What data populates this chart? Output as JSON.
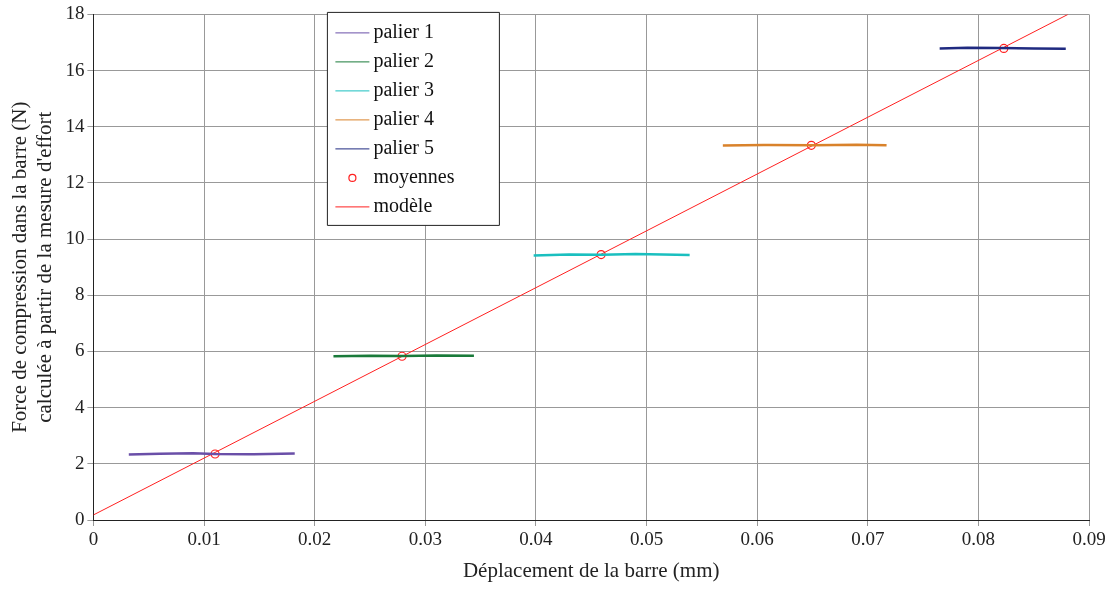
{
  "chart_data": {
    "type": "line",
    "xlabel": "Déplacement de la barre (mm)",
    "ylabel": "Force de compression dans la barre (N)\ncalculée à partir de la mesure d'effort",
    "xlim": [
      0,
      0.09
    ],
    "xticks": [
      0,
      0.01,
      0.02,
      0.03,
      0.04,
      0.05,
      0.06,
      0.07,
      0.08,
      0.09
    ],
    "ylim": [
      0,
      18
    ],
    "yticks": [
      0,
      2,
      4,
      6,
      8,
      10,
      12,
      14,
      16,
      18
    ],
    "grid": true,
    "legend": "top left",
    "series": [
      {
        "name": "palier 1",
        "color": "#6a4fa8",
        "marker": "none",
        "x": [
          0.0032,
          0.006,
          0.009,
          0.011,
          0.014,
          0.0182
        ],
        "values": [
          2.33,
          2.36,
          2.38,
          2.35,
          2.34,
          2.37
        ]
      },
      {
        "name": "palier 2",
        "color": "#1a7a3a",
        "marker": "none",
        "x": [
          0.0217,
          0.025,
          0.028,
          0.031,
          0.0344
        ],
        "values": [
          5.83,
          5.85,
          5.84,
          5.86,
          5.85
        ]
      },
      {
        "name": "palier 3",
        "color": "#1abfbf",
        "marker": "none",
        "x": [
          0.0398,
          0.043,
          0.046,
          0.049,
          0.0539
        ],
        "values": [
          9.42,
          9.45,
          9.44,
          9.47,
          9.43
        ]
      },
      {
        "name": "palier 4",
        "color": "#d9822b",
        "marker": "none",
        "x": [
          0.0569,
          0.061,
          0.065,
          0.069,
          0.0717
        ],
        "values": [
          13.33,
          13.35,
          13.34,
          13.36,
          13.34
        ]
      },
      {
        "name": "palier 5",
        "color": "#1f2a80",
        "marker": "none",
        "x": [
          0.0765,
          0.079,
          0.082,
          0.085,
          0.0879
        ],
        "values": [
          16.79,
          16.81,
          16.8,
          16.79,
          16.78
        ]
      },
      {
        "name": "moyennes",
        "type": "scatter",
        "color": "#ff2020",
        "marker": "circle",
        "x": [
          0.011,
          0.0279,
          0.0459,
          0.0649,
          0.0823
        ],
        "values": [
          2.35,
          5.83,
          9.45,
          13.34,
          16.79
        ]
      },
      {
        "name": "modèle",
        "color": "#ff2020",
        "marker": "none",
        "x": [
          0,
          0.0881
        ],
        "values": [
          0.18,
          18
        ]
      }
    ]
  }
}
